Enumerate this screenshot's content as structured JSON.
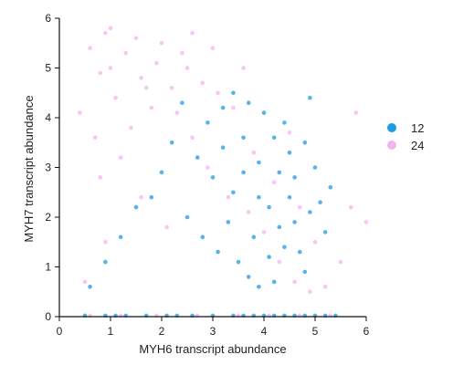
{
  "chart_data": {
    "type": "scatter",
    "xlabel": "MYH6 transcript abundance",
    "ylabel": "MYH7 transcript abundance",
    "xlim": [
      0,
      6
    ],
    "ylim": [
      0,
      6
    ],
    "xticks": [
      "0",
      "1",
      "2",
      "3",
      "4",
      "5",
      "6"
    ],
    "yticks": [
      "0",
      "1",
      "2",
      "3",
      "4",
      "5",
      "6"
    ],
    "grid": false,
    "legend_position": "right",
    "series": [
      {
        "name": "12",
        "color": "#1f9be0",
        "points": [
          [
            4.1,
            1.2
          ],
          [
            4.3,
            1.8
          ],
          [
            4.5,
            2.4
          ],
          [
            3.9,
            3.1
          ],
          [
            4.6,
            2.8
          ],
          [
            4.2,
            3.6
          ],
          [
            3.6,
            2.9
          ],
          [
            3.4,
            2.5
          ],
          [
            3.8,
            1.6
          ],
          [
            4.7,
            1.3
          ],
          [
            4.9,
            2.1
          ],
          [
            5.0,
            3.0
          ],
          [
            4.4,
            3.9
          ],
          [
            4.0,
            4.1
          ],
          [
            3.2,
            3.4
          ],
          [
            3.0,
            2.8
          ],
          [
            3.3,
            1.9
          ],
          [
            3.5,
            1.1
          ],
          [
            4.8,
            0.9
          ],
          [
            4.2,
            0.7
          ],
          [
            3.7,
            0.8
          ],
          [
            5.2,
            1.7
          ],
          [
            5.3,
            2.6
          ],
          [
            4.1,
            2.2
          ],
          [
            4.3,
            2.9
          ],
          [
            3.9,
            2.4
          ],
          [
            4.6,
            1.9
          ],
          [
            4.4,
            1.4
          ],
          [
            3.6,
            3.6
          ],
          [
            3.2,
            4.2
          ],
          [
            2.9,
            3.9
          ],
          [
            2.7,
            3.2
          ],
          [
            2.4,
            4.3
          ],
          [
            2.2,
            3.5
          ],
          [
            2.0,
            2.9
          ],
          [
            1.8,
            2.4
          ],
          [
            1.5,
            2.2
          ],
          [
            1.2,
            1.6
          ],
          [
            0.9,
            1.1
          ],
          [
            0.6,
            0.6
          ],
          [
            4.8,
            3.5
          ],
          [
            4.5,
            3.3
          ],
          [
            3.1,
            1.3
          ],
          [
            2.8,
            1.6
          ],
          [
            2.5,
            2.0
          ],
          [
            3.4,
            4.5
          ],
          [
            3.7,
            4.3
          ],
          [
            4.9,
            4.4
          ],
          [
            5.1,
            2.3
          ],
          [
            3.9,
            0.6
          ],
          [
            0.5,
            0.02
          ],
          [
            0.9,
            0.02
          ],
          [
            1.3,
            0.02
          ],
          [
            1.7,
            0.02
          ],
          [
            2.1,
            0.02
          ],
          [
            2.6,
            0.02
          ],
          [
            3.0,
            0.02
          ],
          [
            3.4,
            0.02
          ],
          [
            3.8,
            0.02
          ],
          [
            4.2,
            0.02
          ],
          [
            4.6,
            0.02
          ],
          [
            5.0,
            0.02
          ],
          [
            5.4,
            0.02
          ],
          [
            4.0,
            0.02
          ],
          [
            4.4,
            0.02
          ],
          [
            3.6,
            0.02
          ],
          [
            2.3,
            0.02
          ],
          [
            1.1,
            0.02
          ],
          [
            4.8,
            0.02
          ],
          [
            5.2,
            0.02
          ]
        ]
      },
      {
        "name": "24",
        "color": "#f4b3ef",
        "points": [
          [
            1.0,
            5.0
          ],
          [
            1.3,
            5.3
          ],
          [
            1.6,
            4.8
          ],
          [
            1.9,
            5.1
          ],
          [
            2.2,
            4.6
          ],
          [
            1.1,
            4.4
          ],
          [
            0.8,
            4.9
          ],
          [
            1.5,
            5.6
          ],
          [
            2.0,
            5.5
          ],
          [
            2.5,
            5.0
          ],
          [
            2.8,
            4.7
          ],
          [
            3.1,
            4.5
          ],
          [
            3.4,
            4.2
          ],
          [
            0.6,
            5.4
          ],
          [
            0.9,
            5.7
          ],
          [
            1.8,
            4.2
          ],
          [
            2.3,
            4.1
          ],
          [
            1.4,
            3.8
          ],
          [
            0.7,
            3.6
          ],
          [
            0.4,
            4.1
          ],
          [
            3.0,
            5.4
          ],
          [
            3.6,
            5.0
          ],
          [
            2.6,
            5.7
          ],
          [
            1.2,
            3.2
          ],
          [
            0.8,
            2.8
          ],
          [
            2.6,
            3.6
          ],
          [
            2.9,
            3.0
          ],
          [
            3.3,
            2.4
          ],
          [
            3.7,
            2.1
          ],
          [
            4.0,
            1.7
          ],
          [
            4.3,
            1.1
          ],
          [
            4.6,
            0.7
          ],
          [
            4.9,
            0.5
          ],
          [
            5.2,
            0.6
          ],
          [
            3.8,
            3.3
          ],
          [
            4.2,
            2.7
          ],
          [
            4.5,
            3.7
          ],
          [
            4.7,
            2.2
          ],
          [
            5.0,
            1.5
          ],
          [
            5.5,
            1.1
          ],
          [
            5.7,
            2.2
          ],
          [
            5.8,
            4.1
          ],
          [
            6.0,
            1.9
          ],
          [
            1.6,
            2.4
          ],
          [
            2.1,
            1.8
          ],
          [
            0.9,
            1.5
          ],
          [
            0.5,
            0.7
          ],
          [
            1.7,
            4.6
          ],
          [
            2.4,
            5.3
          ],
          [
            1.0,
            5.8
          ],
          [
            0.6,
            0.02
          ],
          [
            1.2,
            0.02
          ],
          [
            1.9,
            0.02
          ],
          [
            2.7,
            0.02
          ],
          [
            3.5,
            0.02
          ],
          [
            4.1,
            0.02
          ],
          [
            4.7,
            0.02
          ],
          [
            5.3,
            0.02
          ]
        ]
      }
    ]
  }
}
